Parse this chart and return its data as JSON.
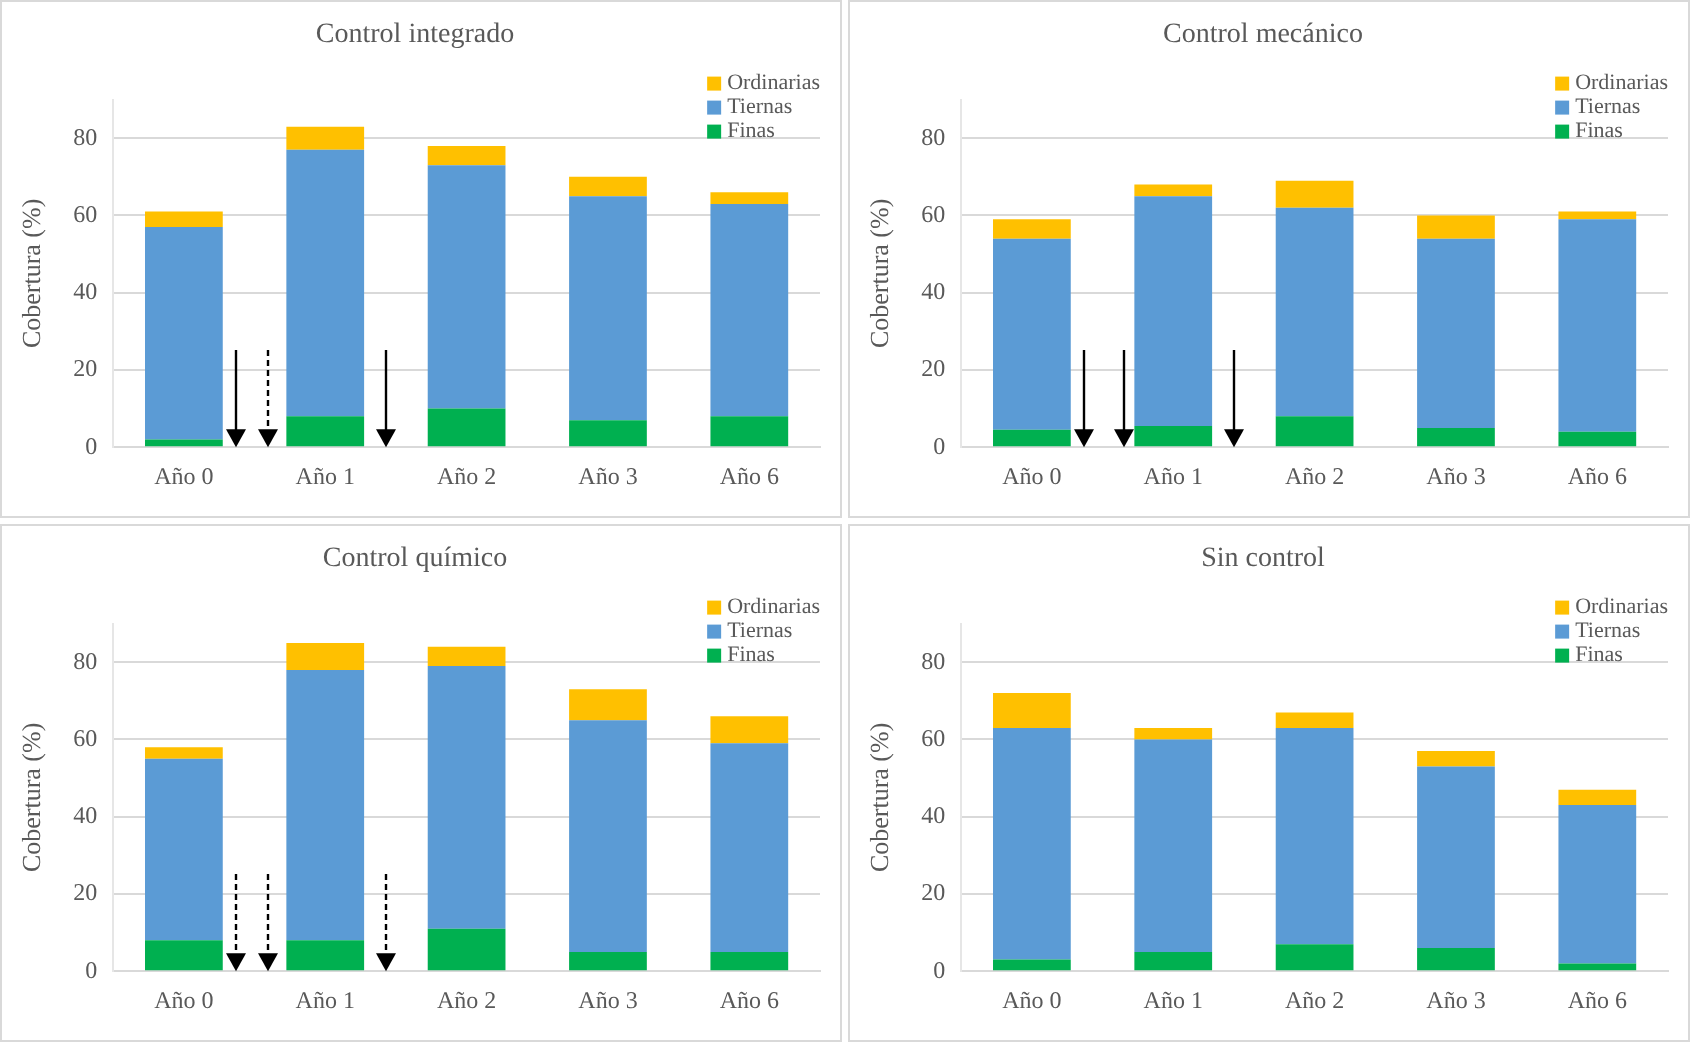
{
  "chart_data": [
    {
      "type": "bar",
      "stacked": true,
      "title": "Control integrado",
      "ylabel": "Cobertura (%)",
      "categories": [
        "Año 0",
        "Año 1",
        "Año 2",
        "Año 3",
        "Año 6"
      ],
      "ylim": [
        0,
        90
      ],
      "yticks": [
        0,
        20,
        40,
        60,
        80
      ],
      "grid": "y",
      "legend": "top right",
      "series": [
        {
          "name": "Finas",
          "color": "#00b050",
          "values": [
            2,
            8,
            10,
            7,
            8
          ]
        },
        {
          "name": "Tiernas",
          "color": "#5b9bd5",
          "values": [
            55,
            69,
            63,
            58,
            55
          ]
        },
        {
          "name": "Ordinarias",
          "color": "#ffc000",
          "values": [
            4,
            6,
            5,
            5,
            3
          ]
        }
      ]
    },
    {
      "type": "bar",
      "stacked": true,
      "title": "Control mecánico",
      "ylabel": "Cobertura (%)",
      "categories": [
        "Año 0",
        "Año 1",
        "Año 2",
        "Año 3",
        "Año 6"
      ],
      "ylim": [
        0,
        90
      ],
      "yticks": [
        0,
        20,
        40,
        60,
        80
      ],
      "grid": "y",
      "legend": "top right",
      "series": [
        {
          "name": "Finas",
          "color": "#00b050",
          "values": [
            4.5,
            5.5,
            8,
            5,
            4
          ]
        },
        {
          "name": "Tiernas",
          "color": "#5b9bd5",
          "values": [
            49.5,
            59.5,
            54,
            49,
            55
          ]
        },
        {
          "name": "Ordinarias",
          "color": "#ffc000",
          "values": [
            5,
            3,
            7,
            6,
            2
          ]
        }
      ]
    },
    {
      "type": "bar",
      "stacked": true,
      "title": "Control químico",
      "ylabel": "Cobertura (%)",
      "categories": [
        "Año 0",
        "Año 1",
        "Año 2",
        "Año 3",
        "Año 6"
      ],
      "ylim": [
        0,
        90
      ],
      "yticks": [
        0,
        20,
        40,
        60,
        80
      ],
      "grid": "y",
      "legend": "top right",
      "series": [
        {
          "name": "Finas",
          "color": "#00b050",
          "values": [
            8,
            8,
            11,
            5,
            5
          ]
        },
        {
          "name": "Tiernas",
          "color": "#5b9bd5",
          "values": [
            47,
            70,
            68,
            60,
            54
          ]
        },
        {
          "name": "Ordinarias",
          "color": "#ffc000",
          "values": [
            3,
            7,
            5,
            8,
            7
          ]
        }
      ]
    },
    {
      "type": "bar",
      "stacked": true,
      "title": "Sin control",
      "ylabel": "Cobertura (%)",
      "categories": [
        "Año 0",
        "Año 1",
        "Año 2",
        "Año 3",
        "Año 6"
      ],
      "ylim": [
        0,
        90
      ],
      "yticks": [
        0,
        20,
        40,
        60,
        80
      ],
      "grid": "y",
      "legend": "top right",
      "series": [
        {
          "name": "Finas",
          "color": "#00b050",
          "values": [
            3,
            5,
            7,
            6,
            2
          ]
        },
        {
          "name": "Tiernas",
          "color": "#5b9bd5",
          "values": [
            60,
            55,
            56,
            47,
            41
          ]
        },
        {
          "name": "Ordinarias",
          "color": "#ffc000",
          "values": [
            9,
            3,
            4,
            4,
            4
          ]
        }
      ]
    }
  ]
}
